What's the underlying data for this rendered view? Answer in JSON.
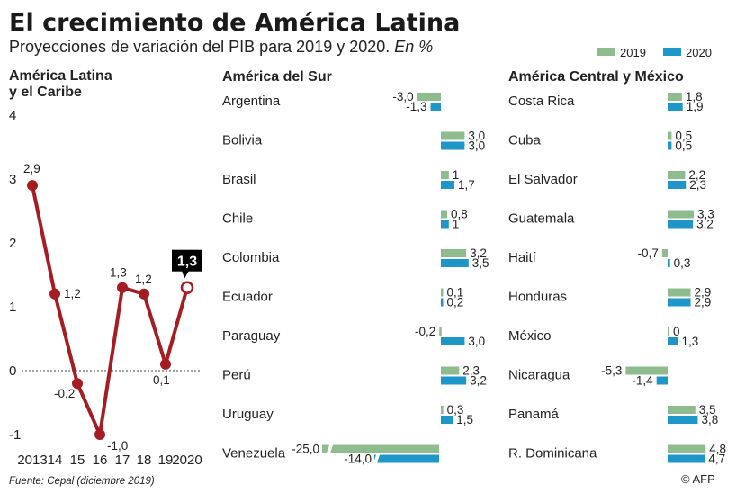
{
  "header": {
    "title": "El crecimiento de América Latina",
    "subtitle": "Proyecciones de variación del PIB para 2019 y 2020.",
    "subtitle_unit": "En %"
  },
  "source": "Fuente: Cepal (diciembre 2019)",
  "credit": "© AFP",
  "colors": {
    "y2019": "#8fbc8f",
    "y2020": "#1e96c8",
    "line": "#a51c22",
    "text": "#222222",
    "callout": "#000000"
  },
  "chart_data": [
    {
      "type": "line",
      "title_lines": [
        "América Latina",
        "y el Caribe"
      ],
      "x_tick_labels": [
        "2013",
        "14",
        "15",
        "16",
        "17",
        "18",
        "19",
        "2020"
      ],
      "values": [
        2.9,
        1.2,
        -0.2,
        -1.0,
        1.3,
        1.2,
        0.1,
        1.3
      ],
      "value_labels": [
        "2,9",
        "1,2",
        "-0,2",
        "-1,0",
        "1,3",
        "1,2",
        "0,1",
        "1,3"
      ],
      "y_ticks": [
        4,
        3,
        2,
        1,
        0,
        -1
      ],
      "ylim": [
        -1,
        4
      ],
      "highlight": {
        "index": 7,
        "label": "1,3"
      }
    },
    {
      "type": "bar",
      "orientation": "horizontal",
      "title": "América del Sur",
      "legend": [
        "2019",
        "2020"
      ],
      "categories": [
        "Argentina",
        "Bolivia",
        "Brasil",
        "Chile",
        "Colombia",
        "Ecuador",
        "Paraguay",
        "Perú",
        "Uruguay",
        "Venezuela"
      ],
      "series": [
        {
          "name": "2019",
          "values": [
            -3.0,
            3.0,
            1.0,
            0.8,
            3.2,
            0.1,
            -0.2,
            2.3,
            0.3,
            -25.0
          ],
          "labels": [
            "-3,0",
            "3,0",
            "1",
            "0,8",
            "3,2",
            "0,1",
            "-0,2",
            "2,3",
            "0,3",
            "-25,0"
          ]
        },
        {
          "name": "2020",
          "values": [
            -1.3,
            3.0,
            1.7,
            1.0,
            3.5,
            0.2,
            3.0,
            3.2,
            1.5,
            -14.0
          ],
          "labels": [
            "-1,3",
            "3,0",
            "1,7",
            "1",
            "3,5",
            "0,2",
            "3,0",
            "3,2",
            "1,5",
            "-14,0"
          ]
        }
      ],
      "axis_break": {
        "category": "Venezuela"
      }
    },
    {
      "type": "bar",
      "orientation": "horizontal",
      "title": "América Central y México",
      "legend": [
        "2019",
        "2020"
      ],
      "categories": [
        "Costa Rica",
        "Cuba",
        "El Salvador",
        "Guatemala",
        "Haití",
        "Honduras",
        "México",
        "Nicaragua",
        "Panamá",
        "R. Dominicana"
      ],
      "series": [
        {
          "name": "2019",
          "values": [
            1.8,
            0.5,
            2.2,
            3.3,
            -0.7,
            2.9,
            0.0,
            -5.3,
            3.5,
            4.8
          ],
          "labels": [
            "1,8",
            "0,5",
            "2,2",
            "3,3",
            "-0,7",
            "2,9",
            "0",
            "-5,3",
            "3,5",
            "4,8"
          ]
        },
        {
          "name": "2020",
          "values": [
            1.9,
            0.5,
            2.3,
            3.2,
            0.3,
            2.9,
            1.3,
            -1.4,
            3.8,
            4.7
          ],
          "labels": [
            "1,9",
            "0,5",
            "2,3",
            "3,2",
            "0,3",
            "2,9",
            "1,3",
            "-1,4",
            "3,8",
            "4,7"
          ]
        }
      ]
    }
  ]
}
